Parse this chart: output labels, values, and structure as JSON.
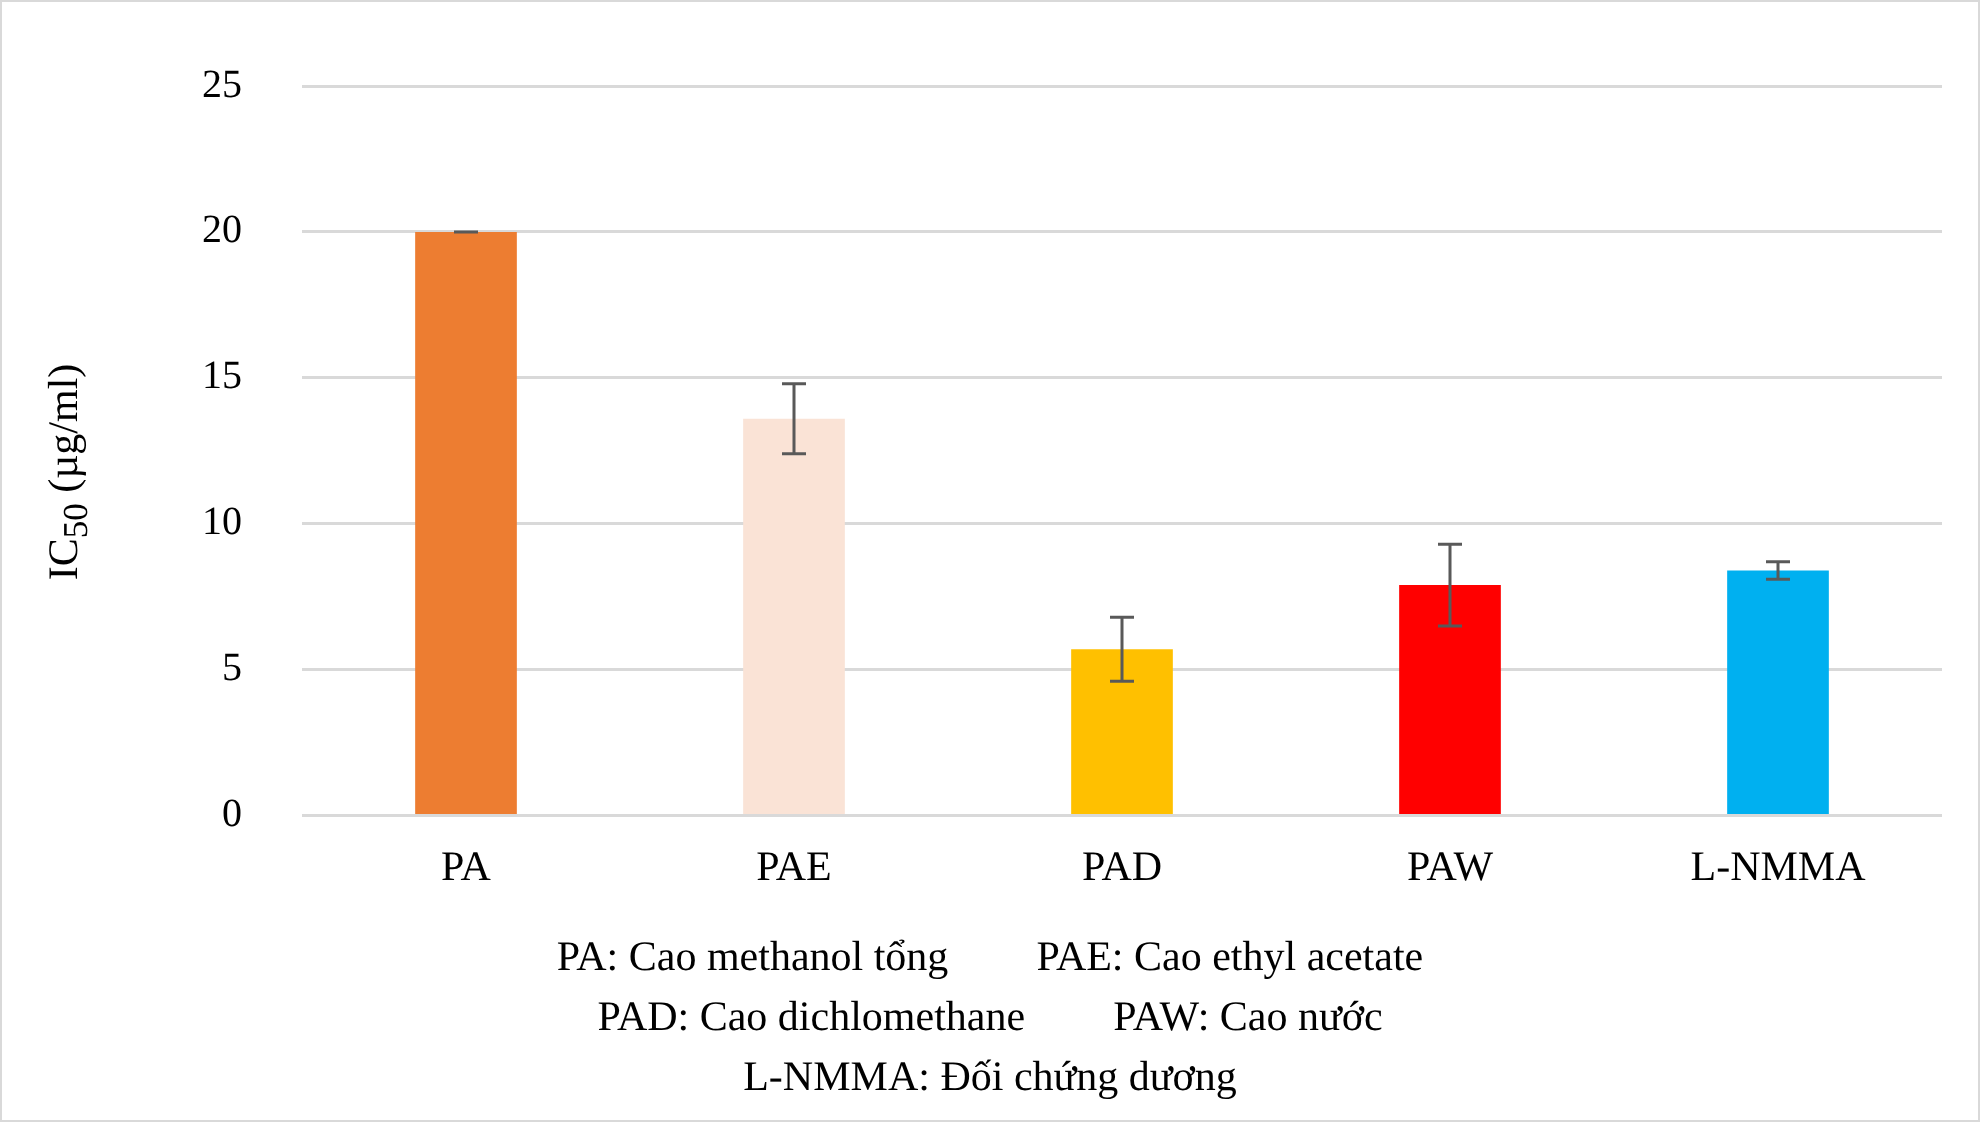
{
  "chart_data": {
    "type": "bar",
    "ylabel": "IC$_{50}$ (µg/ml)",
    "categories": [
      "PA",
      "PAE",
      "PAD",
      "PAW",
      "L-NMMA"
    ],
    "values": [
      20,
      13.6,
      5.7,
      7.9,
      8.4
    ],
    "colors": [
      "#ed7d31",
      "#fae3d6",
      "#ffc000",
      "#ff0000",
      "#00b0f0"
    ],
    "errors": [
      0,
      1.2,
      1.1,
      1.4,
      0.3
    ],
    "ylim": [
      0,
      25
    ],
    "yticks": [
      0,
      5,
      10,
      15,
      20,
      25
    ],
    "grid": "y",
    "legend": false,
    "annotations": [
      "PA: Cao methanol tổng",
      "PAE: Cao ethyl acetate",
      "PAD: Cao dichlomethane",
      "PAW: Cao nước",
      "L-NMMA: Đối chứng dương"
    ]
  }
}
